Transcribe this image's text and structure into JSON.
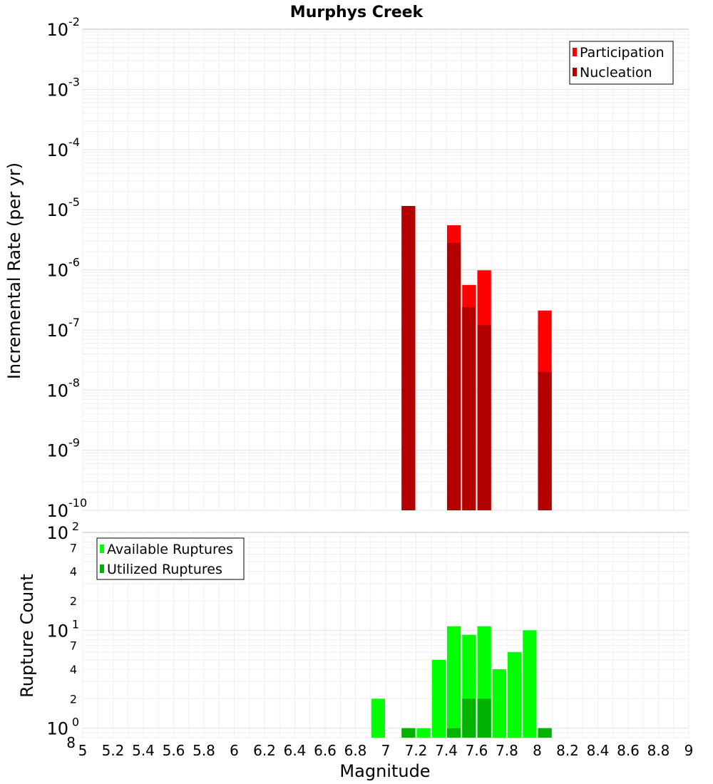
{
  "chart_data": [
    {
      "type": "bar",
      "title": "Murphys Creek",
      "ylabel": "Incremental Rate (per yr)",
      "xlabel": "",
      "yscale": "log",
      "ylim_exp": [
        -10,
        -2
      ],
      "xlim": [
        5,
        9
      ],
      "bar_width": 0.1,
      "grid": true,
      "legend_position": "top-right",
      "y_ticks": [
        {
          "base": "10",
          "exp": "-10"
        },
        {
          "base": "10",
          "exp": "-9"
        },
        {
          "base": "10",
          "exp": "-8"
        },
        {
          "base": "10",
          "exp": "-7"
        },
        {
          "base": "10",
          "exp": "-6"
        },
        {
          "base": "10",
          "exp": "-5"
        },
        {
          "base": "10",
          "exp": "-4"
        },
        {
          "base": "10",
          "exp": "-3"
        },
        {
          "base": "10",
          "exp": "-2"
        }
      ],
      "series": [
        {
          "name": "Participation",
          "color": "#ff0000",
          "points": [
            {
              "x": 7.15,
              "y": 1.15e-05
            },
            {
              "x": 7.45,
              "y": 5.5e-06
            },
            {
              "x": 7.55,
              "y": 5.6e-07
            },
            {
              "x": 7.65,
              "y": 9.8e-07
            },
            {
              "x": 8.05,
              "y": 2.1e-07
            }
          ]
        },
        {
          "name": "Nucleation",
          "color": "#b30000",
          "points": [
            {
              "x": 7.15,
              "y": 1.15e-05
            },
            {
              "x": 7.45,
              "y": 2.8e-06
            },
            {
              "x": 7.55,
              "y": 2.4e-07
            },
            {
              "x": 7.65,
              "y": 1.2e-07
            },
            {
              "x": 8.05,
              "y": 2e-08
            }
          ]
        }
      ]
    },
    {
      "type": "bar",
      "title": "",
      "ylabel": "Rupture Count",
      "xlabel": "Magnitude",
      "yscale": "log",
      "ylim": [
        0.8,
        100
      ],
      "xlim": [
        5,
        9
      ],
      "bar_width": 0.1,
      "grid": true,
      "legend_position": "top-left",
      "y_major_ticks": [
        {
          "base": "10",
          "exp": "0"
        },
        {
          "base": "10",
          "exp": "1"
        },
        {
          "base": "10",
          "exp": "2"
        }
      ],
      "y_minor_labels": [
        "8",
        "2",
        "4",
        "7",
        "2",
        "4",
        "7"
      ],
      "x_ticks": [
        "5",
        "5.2",
        "5.4",
        "5.6",
        "5.8",
        "6",
        "6.2",
        "6.4",
        "6.6",
        "6.8",
        "7",
        "7.2",
        "7.4",
        "7.6",
        "7.8",
        "8",
        "8.2",
        "8.4",
        "8.6",
        "8.8",
        "9"
      ],
      "series": [
        {
          "name": "Available Ruptures",
          "color": "#00ff00",
          "points": [
            {
              "x": 6.95,
              "y": 2
            },
            {
              "x": 7.15,
              "y": 1
            },
            {
              "x": 7.25,
              "y": 1
            },
            {
              "x": 7.35,
              "y": 5
            },
            {
              "x": 7.45,
              "y": 11
            },
            {
              "x": 7.55,
              "y": 9
            },
            {
              "x": 7.65,
              "y": 11
            },
            {
              "x": 7.75,
              "y": 4
            },
            {
              "x": 7.85,
              "y": 6
            },
            {
              "x": 7.95,
              "y": 10
            },
            {
              "x": 8.05,
              "y": 1
            }
          ]
        },
        {
          "name": "Utilized Ruptures",
          "color": "#00b300",
          "points": [
            {
              "x": 7.15,
              "y": 1
            },
            {
              "x": 7.45,
              "y": 1
            },
            {
              "x": 7.55,
              "y": 2
            },
            {
              "x": 7.65,
              "y": 2
            },
            {
              "x": 8.05,
              "y": 1
            }
          ]
        }
      ]
    }
  ]
}
